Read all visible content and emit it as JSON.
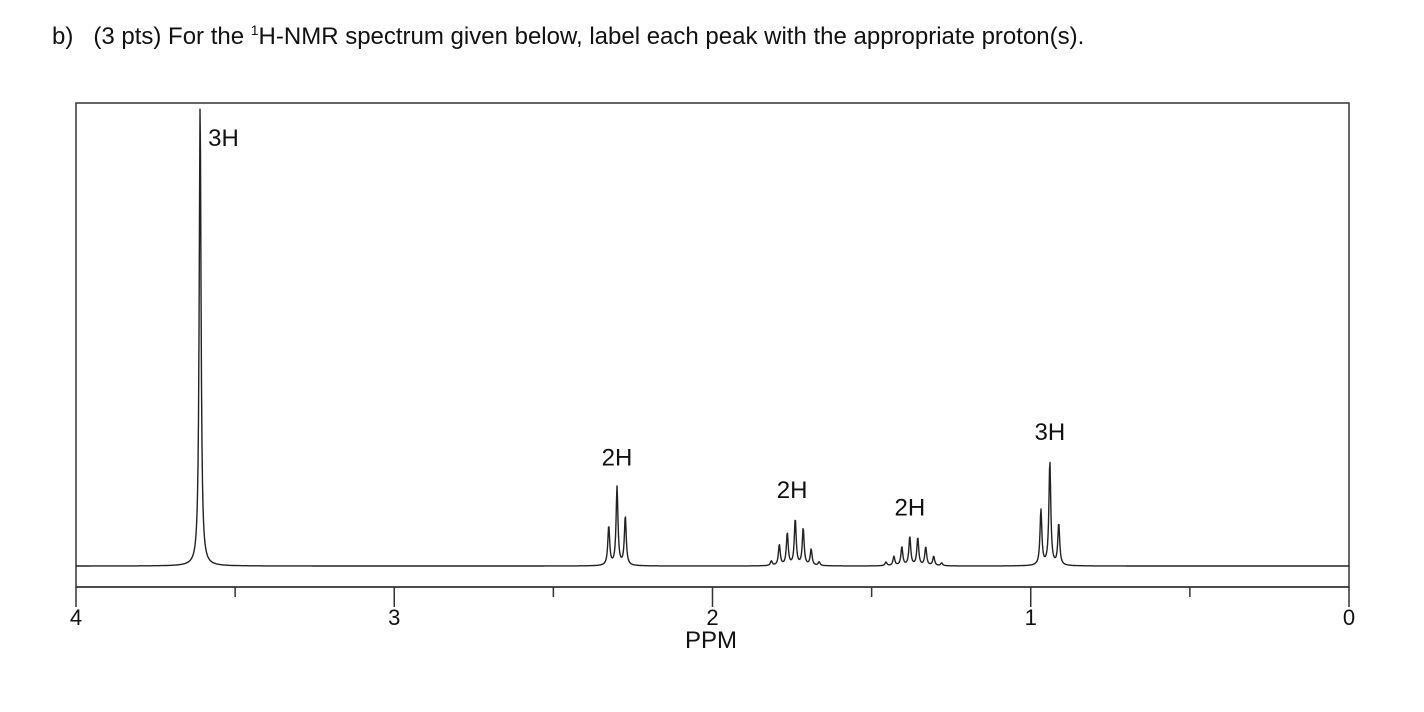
{
  "question": {
    "part": "b)",
    "points": "(3 pts)",
    "prefix": "For the",
    "superscript": "1",
    "rest": "H-NMR spectrum given below, label each peak with the appropriate proton(s)."
  },
  "chart_data": {
    "type": "line",
    "title": "",
    "xlabel": "PPM",
    "ylabel": "",
    "xlim": [
      4,
      0
    ],
    "x_reversed": true,
    "major_ticks": [
      4,
      3,
      2,
      1,
      0
    ],
    "tick_labels": [
      "4",
      "3",
      "2",
      "1",
      "0"
    ],
    "minor_ticks": [
      3.5,
      2.5,
      1.5,
      0.5
    ],
    "grid": false,
    "legend": "none",
    "line_color": "#222222",
    "peaks": [
      {
        "label": "3H",
        "center": 3.61,
        "lines": [
          {
            "ppm": 3.61,
            "h": 1.0
          }
        ]
      },
      {
        "label": "2H",
        "center": 2.3,
        "lines": [
          {
            "ppm": 2.326,
            "h": 0.085
          },
          {
            "ppm": 2.3,
            "h": 0.17
          },
          {
            "ppm": 2.274,
            "h": 0.106
          }
        ]
      },
      {
        "label": "2H",
        "center": 1.75,
        "lines": [
          {
            "ppm": 1.815,
            "h": 0.01
          },
          {
            "ppm": 1.79,
            "h": 0.045
          },
          {
            "ppm": 1.765,
            "h": 0.07
          },
          {
            "ppm": 1.74,
            "h": 0.1
          },
          {
            "ppm": 1.715,
            "h": 0.08
          },
          {
            "ppm": 1.69,
            "h": 0.035
          },
          {
            "ppm": 1.665,
            "h": 0.008
          }
        ]
      },
      {
        "label": "2H",
        "center": 1.38,
        "lines": [
          {
            "ppm": 1.455,
            "h": 0.008
          },
          {
            "ppm": 1.43,
            "h": 0.02
          },
          {
            "ppm": 1.405,
            "h": 0.04
          },
          {
            "ppm": 1.38,
            "h": 0.062
          },
          {
            "ppm": 1.355,
            "h": 0.06
          },
          {
            "ppm": 1.33,
            "h": 0.04
          },
          {
            "ppm": 1.305,
            "h": 0.02
          },
          {
            "ppm": 1.28,
            "h": 0.006
          }
        ]
      },
      {
        "label": "3H",
        "center": 0.94,
        "lines": [
          {
            "ppm": 0.968,
            "h": 0.12
          },
          {
            "ppm": 0.94,
            "h": 0.225
          },
          {
            "ppm": 0.912,
            "h": 0.09
          }
        ]
      }
    ]
  }
}
